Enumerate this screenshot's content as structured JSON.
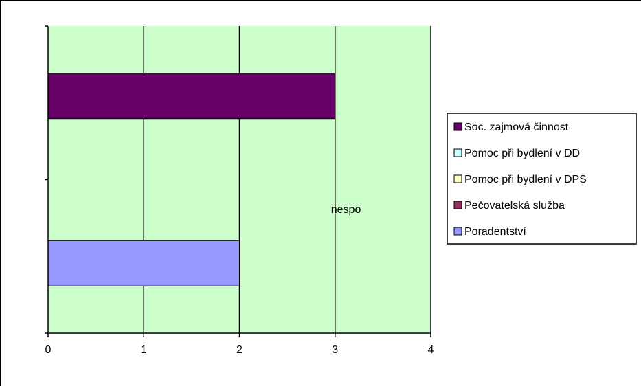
{
  "chart_data": {
    "type": "bar",
    "orientation": "horizontal",
    "stacked": true,
    "title": "",
    "xlabel": "",
    "ylabel": "",
    "xlim": [
      0,
      4
    ],
    "x_ticks": [
      "0",
      "1",
      "2",
      "3",
      "4"
    ],
    "grid": true,
    "plot_background": "#ccffcc",
    "categories": [
      "bottom",
      "top"
    ],
    "series": [
      {
        "name": "Poradentství",
        "color": "#9999ff",
        "values": [
          2,
          0
        ]
      },
      {
        "name": "Pečovatelská služba",
        "color": "#993366",
        "values": [
          0,
          0
        ]
      },
      {
        "name": "Pomoc při bydlení v DPS",
        "color": "#ffffcc",
        "values": [
          0,
          0
        ]
      },
      {
        "name": "Pomoc při bydlení v DD",
        "color": "#ccffff",
        "values": [
          0,
          0
        ]
      },
      {
        "name": "Soc. zajmová činnost",
        "color": "#660066",
        "values": [
          0,
          3
        ]
      }
    ],
    "legend": {
      "placement": "right",
      "order": [
        "Soc. zajmová činnost",
        "Pomoc při bydlení v DD",
        "Pomoc při bydlení v DPS",
        "Pečovatelská služba",
        "Poradentství"
      ]
    },
    "annotations": [
      {
        "text": "nespo",
        "x": 3.0
      }
    ]
  }
}
